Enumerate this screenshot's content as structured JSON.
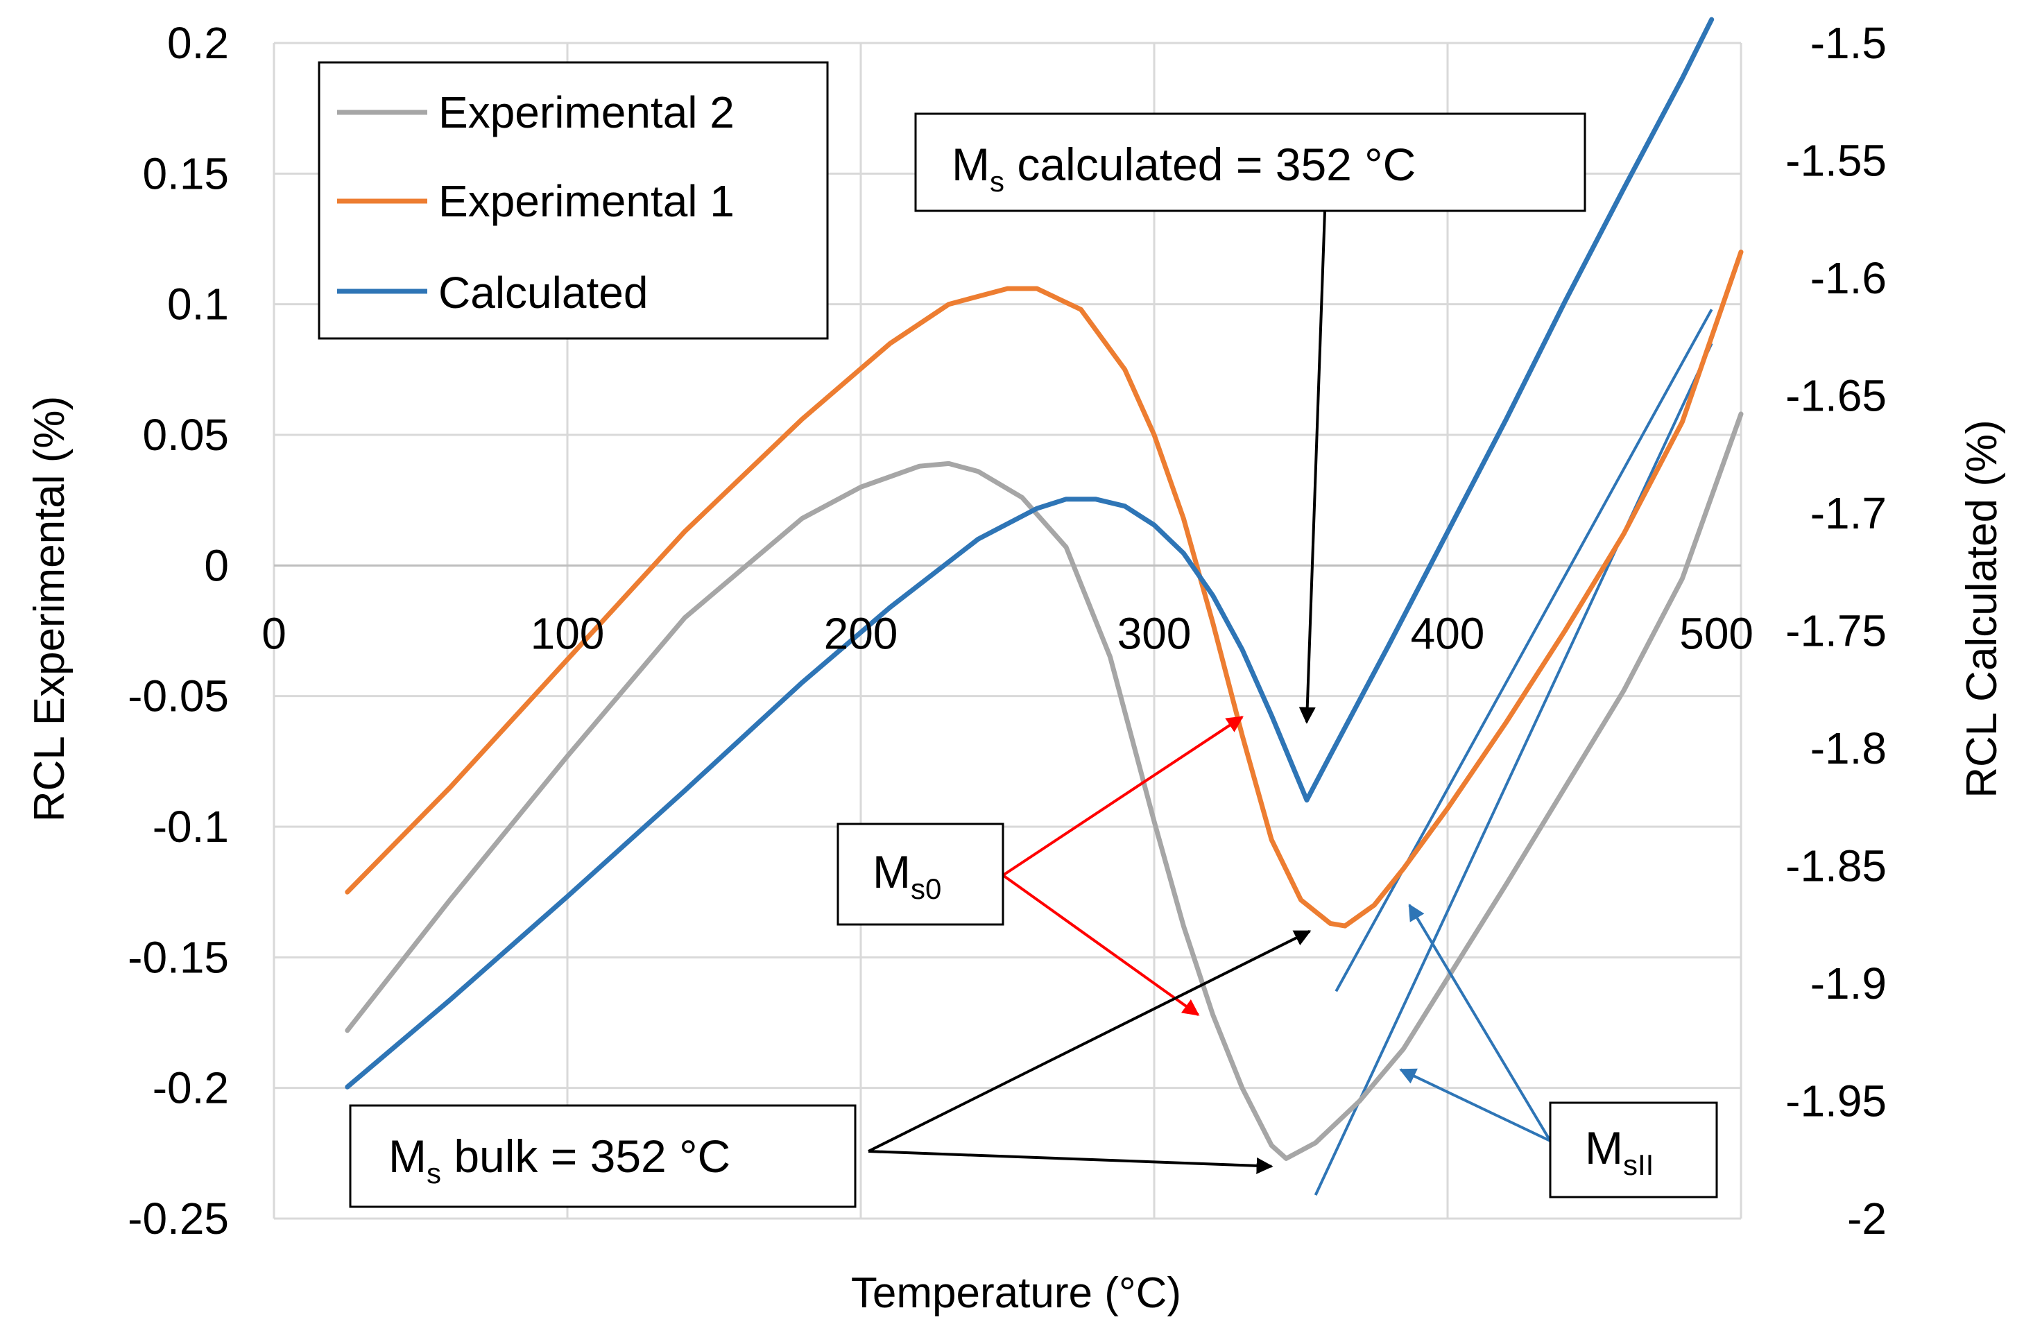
{
  "chart_data": {
    "type": "line",
    "title": "",
    "xlabel": "Temperature (°C)",
    "ylabel_left": "RCL Experimental (%)",
    "ylabel_right": "RCL Calculated (%)",
    "xlim": [
      0,
      500
    ],
    "ylim_left": [
      -0.25,
      0.2
    ],
    "ylim_right": [
      -2.0,
      -1.5
    ],
    "x_ticks": [
      "0",
      "100",
      "200",
      "300",
      "400",
      "500"
    ],
    "y_left_ticks": [
      "0.2",
      "0.15",
      "0.1",
      "0.05",
      "0",
      "-0.05",
      "-0.1",
      "-0.15",
      "-0.2",
      "-0.25"
    ],
    "y_right_ticks": [
      "-1.5",
      "-1.55",
      "-1.6",
      "-1.65",
      "-1.7",
      "-1.75",
      "-1.8",
      "-1.85",
      "-1.9",
      "-1.95",
      "-2"
    ],
    "grid": true,
    "legend_position": "top-left",
    "series": [
      {
        "name": "Experimental 2",
        "axis": "left",
        "color": "#a6a6a6",
        "x": [
          25,
          60,
          100,
          140,
          180,
          200,
          220,
          230,
          240,
          255,
          270,
          285,
          300,
          310,
          320,
          330,
          340,
          345,
          355,
          370,
          385,
          400,
          420,
          440,
          460,
          480,
          500
        ],
        "y": [
          -0.178,
          -0.128,
          -0.073,
          -0.02,
          0.018,
          0.03,
          0.038,
          0.039,
          0.036,
          0.026,
          0.007,
          -0.035,
          -0.098,
          -0.138,
          -0.172,
          -0.2,
          -0.222,
          -0.227,
          -0.221,
          -0.205,
          -0.185,
          -0.158,
          -0.122,
          -0.085,
          -0.048,
          -0.005,
          0.058
        ]
      },
      {
        "name": "Experimental 1",
        "axis": "left",
        "color": "#ed7d31",
        "x": [
          25,
          60,
          100,
          140,
          180,
          210,
          230,
          250,
          260,
          275,
          290,
          300,
          310,
          320,
          330,
          340,
          350,
          360,
          365,
          375,
          385,
          400,
          420,
          440,
          460,
          480,
          500
        ],
        "y": [
          -0.125,
          -0.085,
          -0.036,
          0.013,
          0.056,
          0.085,
          0.1,
          0.106,
          0.106,
          0.098,
          0.075,
          0.05,
          0.018,
          -0.022,
          -0.065,
          -0.105,
          -0.128,
          -0.137,
          -0.138,
          -0.13,
          -0.116,
          -0.093,
          -0.06,
          -0.025,
          0.012,
          0.055,
          0.12
        ]
      },
      {
        "name": "Calculated",
        "axis": "right",
        "color": "#2e75b6",
        "x": [
          25,
          60,
          100,
          140,
          180,
          210,
          240,
          260,
          270,
          280,
          290,
          300,
          310,
          320,
          330,
          340,
          348,
          352,
          360,
          380,
          400,
          420,
          440,
          460,
          480,
          490
        ],
        "y": [
          -1.944,
          -1.907,
          -1.863,
          -1.818,
          -1.772,
          -1.74,
          -1.711,
          -1.698,
          -1.694,
          -1.694,
          -1.697,
          -1.705,
          -1.717,
          -1.735,
          -1.758,
          -1.786,
          -1.81,
          -1.822,
          -1.803,
          -1.756,
          -1.708,
          -1.66,
          -1.61,
          -1.562,
          -1.515,
          -1.49
        ]
      }
    ],
    "guide_lines": [
      {
        "name": "Ms-II tangent upper",
        "axis": "left",
        "color": "#2e75b6",
        "x": [
          362,
          490
        ],
        "y": [
          -0.163,
          0.098
        ]
      },
      {
        "name": "Ms-II tangent lower",
        "axis": "left",
        "color": "#2e75b6",
        "x": [
          355,
          490
        ],
        "y": [
          -0.241,
          0.085
        ]
      }
    ],
    "annotations": [
      {
        "id": "ms-calculated",
        "main": "M",
        "sub": "s",
        "after": " calculated = 352 °C",
        "arrow_color": "#000000",
        "arrow_targets": [
          [
            352,
            -0.06
          ]
        ]
      },
      {
        "id": "ms0",
        "main": "M",
        "sub": "s0",
        "after": "",
        "arrow_color": "#ff0000",
        "arrow_targets": [
          [
            330,
            -0.058
          ],
          [
            315,
            -0.172
          ]
        ]
      },
      {
        "id": "ms-bulk",
        "main": "M",
        "sub": "s",
        "after": " bulk = 352 °C",
        "arrow_color": "#000000",
        "arrow_targets": [
          [
            353,
            -0.14
          ],
          [
            340,
            -0.23
          ]
        ]
      },
      {
        "id": "msII",
        "main": "M",
        "sub": "sII",
        "after": "",
        "arrow_color": "#2e75b6",
        "arrow_targets": [
          [
            387,
            -0.13
          ],
          [
            384,
            -0.193
          ]
        ]
      }
    ]
  }
}
